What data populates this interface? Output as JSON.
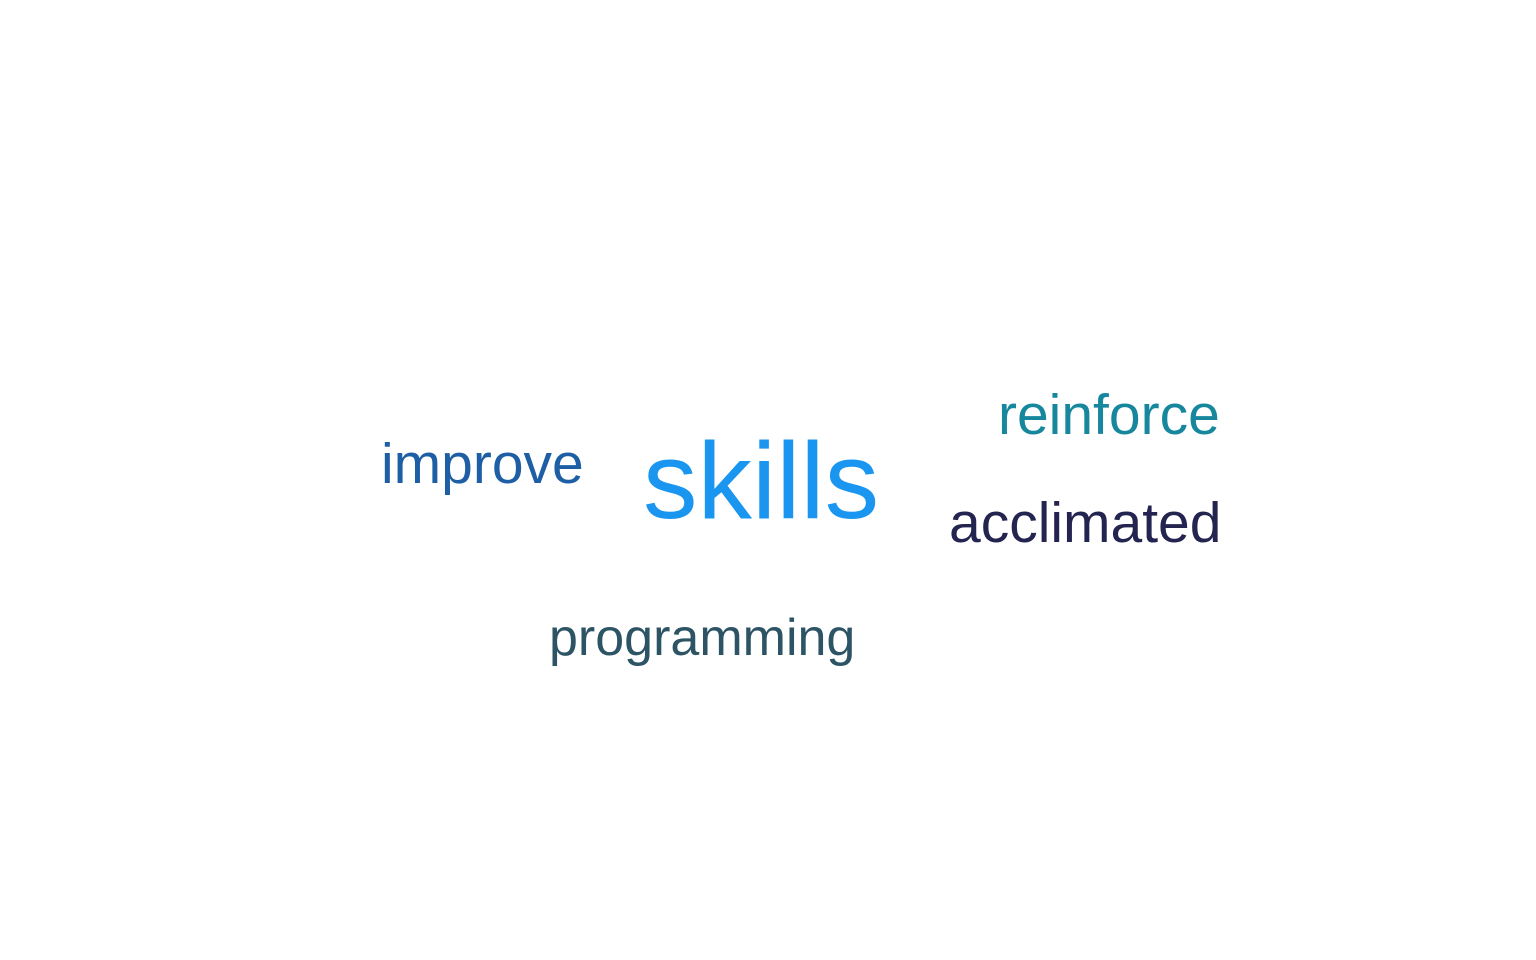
{
  "word_cloud": {
    "words": [
      {
        "text": "skills",
        "color": "#1a96f0"
      },
      {
        "text": "improve",
        "color": "#1d5ea4"
      },
      {
        "text": "reinforce",
        "color": "#17879e"
      },
      {
        "text": "acclimated",
        "color": "#242450"
      },
      {
        "text": "programming",
        "color": "#2d5464"
      }
    ]
  }
}
